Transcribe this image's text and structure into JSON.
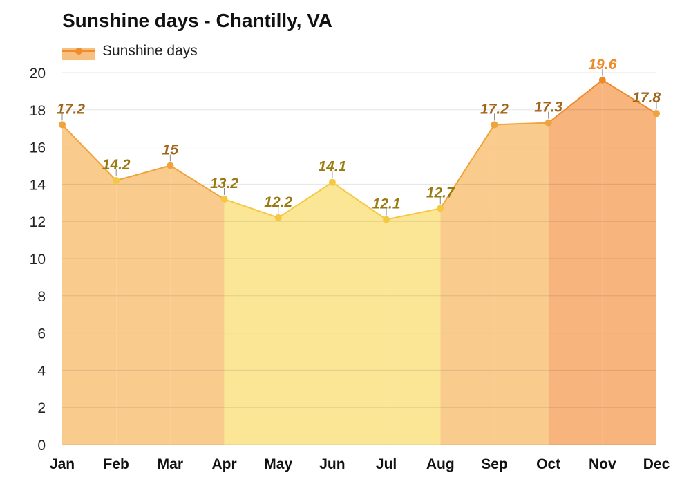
{
  "chart_data": {
    "type": "area",
    "title": "Sunshine days - Chantilly, VA",
    "xlabel": "",
    "ylabel": "",
    "categories": [
      "Jan",
      "Feb",
      "Mar",
      "Apr",
      "May",
      "Jun",
      "Jul",
      "Aug",
      "Sep",
      "Oct",
      "Nov",
      "Dec"
    ],
    "series": [
      {
        "name": "Sunshine days",
        "values": [
          17.2,
          14.2,
          15,
          13.2,
          12.2,
          14.1,
          12.1,
          12.7,
          17.2,
          17.3,
          19.6,
          17.8
        ]
      }
    ],
    "data_labels": [
      "17.2",
      "14.2",
      "15",
      "13.2",
      "12.2",
      "14.1",
      "12.1",
      "12.7",
      "17.2",
      "17.3",
      "19.6",
      "17.8"
    ],
    "ylim": [
      0,
      20
    ],
    "yticks": [
      0,
      2,
      4,
      6,
      8,
      10,
      12,
      14,
      16,
      18,
      20
    ],
    "grid": true,
    "legend_position": "top-left",
    "colors": {
      "low_fill": "#fbe696",
      "low_line": "#f5c842",
      "mid_fill": "#f9cc8e",
      "mid_line": "#efa33b",
      "high_fill": "#f7b47c",
      "high_line": "#ef8a2a",
      "label_low": "#9a7a10",
      "label_mid": "#a0641a",
      "label_high": "#ef8a2a"
    }
  },
  "legend": {
    "label": "Sunshine days"
  }
}
